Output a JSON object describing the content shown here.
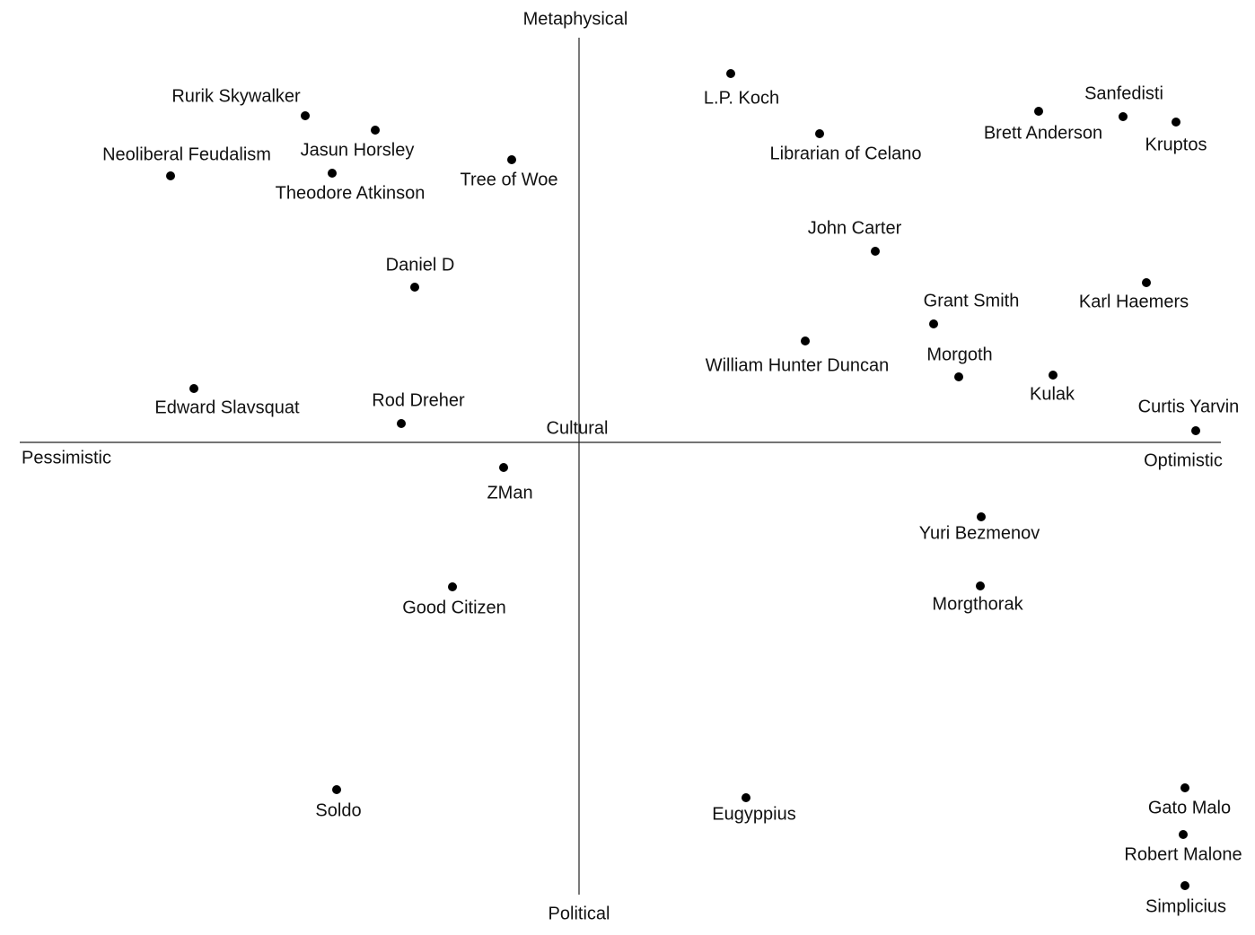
{
  "chart_data": {
    "type": "scatter",
    "top_label": "Metaphysical",
    "bottom_label": "Political",
    "left_label": "Pessimistic",
    "right_label": "Optimistic",
    "center_label": "Cultural",
    "xlim": [
      -62,
      72
    ],
    "ylim": [
      -50,
      45
    ],
    "color": "#000000",
    "labels": [
      "Rurik Skywalker",
      "Jasun Horsley",
      "Neoliberal Feudalism",
      "Theodore Atkinson",
      "Tree of Woe",
      "Daniel D",
      "Edward Slavsquat",
      "Rod Dreher",
      "L.P. Koch",
      "Librarian of Celano",
      "Brett Anderson",
      "Sanfedisti",
      "Kruptos",
      "John Carter",
      "Grant Smith",
      "Karl Haemers",
      "William Hunter Duncan",
      "Morgoth",
      "Kulak",
      "Curtis Yarvin",
      "ZMan",
      "Yuri Bezmenov",
      "Good Citizen",
      "Morgthorak",
      "Soldo",
      "Eugyppius",
      "Gato Malo",
      "Robert Malone",
      "Simplicius"
    ],
    "x": [
      -30.5,
      -22.7,
      -45.5,
      -27.5,
      -7.5,
      -18.3,
      -42.9,
      -19.8,
      16.9,
      26.8,
      51.2,
      60.6,
      66.5,
      33.0,
      39.5,
      63.2,
      25.2,
      42.3,
      52.8,
      68.7,
      -8.4,
      44.8,
      -14.1,
      44.7,
      -27.0,
      18.6,
      67.5,
      67.3,
      67.5
    ],
    "values": [
      36.4,
      34.8,
      29.7,
      30.0,
      31.5,
      17.3,
      6.0,
      2.1,
      41.1,
      34.4,
      36.9,
      36.3,
      35.7,
      21.3,
      13.2,
      17.8,
      11.3,
      7.3,
      7.5,
      1.3,
      -2.8,
      -8.3,
      -16.1,
      -16.0,
      -38.7,
      -39.6,
      -38.5,
      -43.7,
      -49.4
    ]
  }
}
